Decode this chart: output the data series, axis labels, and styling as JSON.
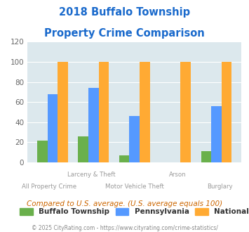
{
  "title_line1": "2018 Buffalo Township",
  "title_line2": "Property Crime Comparison",
  "categories": [
    "All Property Crime",
    "Larceny & Theft",
    "Motor Vehicle Theft",
    "Arson",
    "Burglary"
  ],
  "buffalo_values": [
    22,
    26,
    7,
    0,
    11
  ],
  "pennsylvania_values": [
    68,
    74,
    46,
    0,
    56
  ],
  "national_values": [
    100,
    100,
    100,
    100,
    100
  ],
  "buffalo_color": "#6ab04c",
  "pennsylvania_color": "#5599ff",
  "national_color": "#ffaa33",
  "title_color": "#1a6acc",
  "fig_bg": "#ffffff",
  "plot_bg": "#dce8ed",
  "ylim": [
    0,
    120
  ],
  "yticks": [
    0,
    20,
    40,
    60,
    80,
    100,
    120
  ],
  "legend_labels": [
    "Buffalo Township",
    "Pennsylvania",
    "National"
  ],
  "footnote": "Compared to U.S. average. (U.S. average equals 100)",
  "copyright": "© 2025 CityRating.com - https://www.cityrating.com/crime-statistics/"
}
